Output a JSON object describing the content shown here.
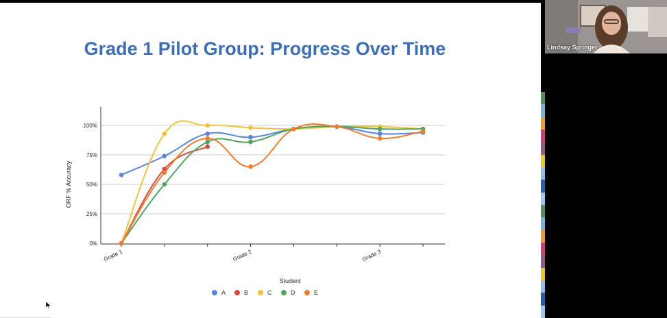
{
  "slide": {
    "title": "Grade 1 Pilot Group: Progress Over Time"
  },
  "participant": {
    "name": "Lindsay Springer"
  },
  "icons": {
    "cursor": "mouse-pointer-icon"
  },
  "stripe_colors": [
    "#5b8a5b",
    "#7bb3d6",
    "#e2a23a",
    "#c8427c",
    "#8b5e83",
    "#e8c83a",
    "#9bbbe0",
    "#2d5fa0",
    "#a3c8e8",
    "#5b8a5b",
    "#7bb3d6",
    "#e2a23a",
    "#c8427c",
    "#8b5e83",
    "#e8c83a",
    "#9bbbe0",
    "#2d5fa0",
    "#a3c8e8"
  ],
  "chart_data": {
    "type": "line",
    "title": "",
    "xlabel": "Student",
    "ylabel": "ORF % Accuracy",
    "x_tick_labels": [
      "Grade 1",
      "Grade 2",
      "Grade 3"
    ],
    "y_tick_labels": [
      "0%",
      "25%",
      "50%",
      "75%",
      "100%"
    ],
    "ylim": [
      0,
      1
    ],
    "num_points": 8,
    "grid": true,
    "smooth": true,
    "legend_position": "bottom",
    "series": [
      {
        "name": "A",
        "color": "#5b84de",
        "values": [
          0.58,
          0.74,
          0.93,
          0.9,
          0.97,
          0.99,
          0.93,
          0.94
        ]
      },
      {
        "name": "B",
        "color": "#d94b38",
        "values": [
          0.0,
          0.63,
          0.82,
          null,
          null,
          null,
          null,
          null
        ]
      },
      {
        "name": "C",
        "color": "#f0c33c",
        "values": [
          0.0,
          0.93,
          1.0,
          0.98,
          0.97,
          0.99,
          0.99,
          0.97
        ]
      },
      {
        "name": "D",
        "color": "#4ea55b",
        "values": [
          0.0,
          0.5,
          0.86,
          0.86,
          0.97,
          0.99,
          0.97,
          0.97
        ]
      },
      {
        "name": "E",
        "color": "#ef7d31",
        "values": [
          0.0,
          0.6,
          0.89,
          0.65,
          0.97,
          0.99,
          0.89,
          0.95
        ]
      }
    ]
  }
}
